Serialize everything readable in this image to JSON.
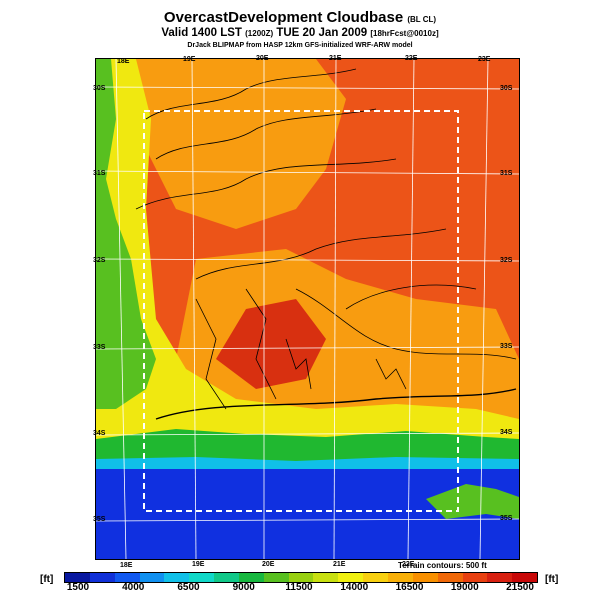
{
  "title": {
    "main": "OvercastDevelopment Cloudbase",
    "main_tag": "(BL CL)",
    "valid": "Valid 1400 LST",
    "valid_code": "(1200Z)",
    "date": "TUE 20 Jan 2009",
    "run_tag": "[18hrFcst@0010z]",
    "credit": "DrJack BLIPMAP from HASP 12km GFS-initialized WRF-ARW model"
  },
  "axes": {
    "lon_top": [
      "18E",
      "19E",
      "20E",
      "21E",
      "22E",
      "23E"
    ],
    "lon_bottom": [
      "18E",
      "19E",
      "20E",
      "21E",
      "22E"
    ],
    "lat_left": [
      "30S",
      "31S",
      "32S",
      "33S",
      "34S",
      "35S"
    ],
    "lat_right": [
      "30S",
      "31S",
      "32S",
      "33S",
      "34S",
      "35S"
    ]
  },
  "terrain_note": "Terrain contours: 500 ft",
  "colorbar": {
    "unit_left": "[ft]",
    "unit_right": "[ft]",
    "labels": [
      "1500",
      "4000",
      "6500",
      "9000",
      "11500",
      "14000",
      "16500",
      "19000",
      "21500"
    ],
    "colors": [
      "#0818a0",
      "#1030d8",
      "#1058f0",
      "#1090f0",
      "#10c0e8",
      "#10d8c8",
      "#10c888",
      "#18b840",
      "#58c020",
      "#98d010",
      "#c8e010",
      "#f0f010",
      "#f8d010",
      "#f8b008",
      "#f89000",
      "#f06808",
      "#e84010",
      "#d82010",
      "#c80808"
    ]
  },
  "palette": {
    "deep_blue": "#1030e0",
    "green": "#20b830",
    "yellow": "#f0e810",
    "orange": "#f89c10",
    "red_orange": "#ec5418",
    "red": "#d83010",
    "domain_box": "#ffffff",
    "grid": "#ffffff"
  }
}
